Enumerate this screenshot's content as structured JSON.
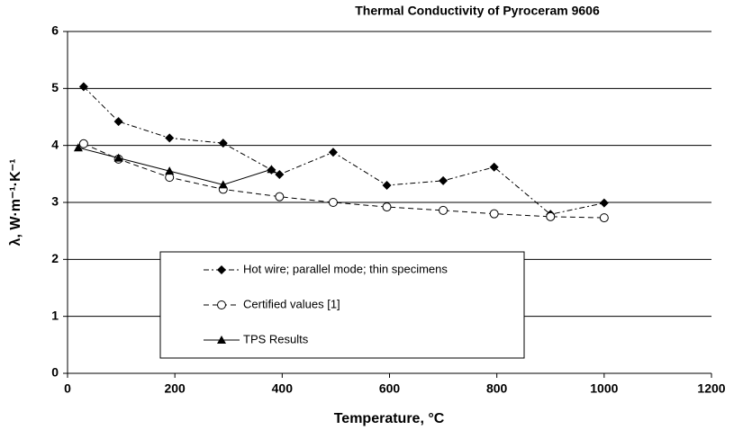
{
  "chart_data": {
    "type": "line",
    "title": "Thermal Conductivity of Pyroceram 9606",
    "xlabel": "Temperature, °C",
    "ylabel": "λ, W·m⁻¹·K⁻¹",
    "xlim": [
      0,
      1200
    ],
    "xticks": [
      0,
      200,
      400,
      600,
      800,
      1000,
      1200
    ],
    "ylim": [
      0,
      6
    ],
    "yticks": [
      0,
      1,
      2,
      3,
      4,
      5,
      6
    ],
    "grid": true,
    "series": [
      {
        "name": "Hot wire; parallel mode; thin specimens",
        "color": "#000000",
        "style": "dashdot",
        "marker": "diamond",
        "x": [
          30,
          95,
          190,
          290,
          380,
          395,
          495,
          595,
          700,
          795,
          900,
          1000
        ],
        "values": [
          5.03,
          4.42,
          4.13,
          4.04,
          3.57,
          3.49,
          3.88,
          3.3,
          3.38,
          3.62,
          2.79,
          2.99
        ]
      },
      {
        "name": "Certified values [1]",
        "color": "#000000",
        "style": "dashed",
        "marker": "circle",
        "x": [
          30,
          95,
          190,
          290,
          395,
          495,
          595,
          700,
          795,
          900,
          1000
        ],
        "values": [
          4.03,
          3.76,
          3.44,
          3.23,
          3.1,
          3.0,
          2.92,
          2.86,
          2.8,
          2.75,
          2.73
        ]
      },
      {
        "name": "TPS Results",
        "color": "#000000",
        "style": "solid",
        "marker": "triangle",
        "x": [
          20,
          95,
          190,
          290,
          380
        ],
        "values": [
          3.96,
          3.78,
          3.55,
          3.31,
          3.58
        ]
      }
    ]
  }
}
